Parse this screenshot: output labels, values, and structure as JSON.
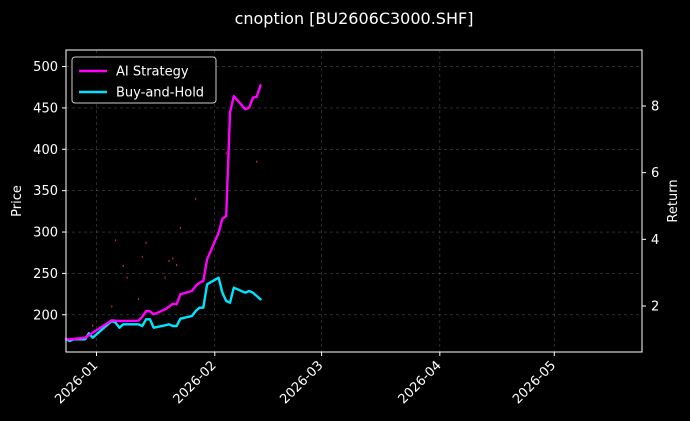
{
  "chart_data": {
    "type": "line",
    "title": "cnoption [BU2606C3000.SHF]",
    "ylabel": "Price",
    "y2label": "Return",
    "xlim": [
      "2025-12-24",
      "2026-05-24"
    ],
    "ylim": [
      155,
      520
    ],
    "y2lim": [
      0.62,
      9.68
    ],
    "x_ticks": [
      "2026-01",
      "2026-02",
      "2026-03",
      "2026-04",
      "2026-05"
    ],
    "y_ticks": [
      200,
      250,
      300,
      350,
      400,
      450,
      500
    ],
    "y2_ticks": [
      2,
      4,
      6,
      8
    ],
    "grid": true,
    "legend_position": "top-left",
    "series": [
      {
        "name": "AI Strategy",
        "axis": "right",
        "color": "#ff00ff",
        "x": [
          "2025-12-24",
          "2025-12-25",
          "2025-12-26",
          "2025-12-29",
          "2025-12-30",
          "2025-12-31",
          "2026-01-02",
          "2026-01-05",
          "2026-01-06",
          "2026-01-07",
          "2026-01-08",
          "2026-01-09",
          "2026-01-12",
          "2026-01-13",
          "2026-01-14",
          "2026-01-15",
          "2026-01-16",
          "2026-01-19",
          "2026-01-20",
          "2026-01-21",
          "2026-01-22",
          "2026-01-23",
          "2026-01-26",
          "2026-01-27",
          "2026-01-28",
          "2026-01-29",
          "2026-01-30",
          "2026-02-02",
          "2026-02-03",
          "2026-02-04",
          "2026-02-05",
          "2026-02-06",
          "2026-02-09",
          "2026-02-10",
          "2026-02-11",
          "2026-02-12",
          "2026-02-13"
        ],
        "values": [
          1.0,
          1.0,
          1.01,
          1.05,
          1.12,
          1.2,
          1.35,
          1.57,
          1.56,
          1.55,
          1.55,
          1.55,
          1.56,
          1.68,
          1.85,
          1.84,
          1.75,
          1.9,
          1.98,
          2.07,
          2.05,
          2.35,
          2.45,
          2.6,
          2.7,
          2.75,
          3.4,
          4.2,
          4.62,
          4.7,
          7.8,
          8.3,
          7.9,
          7.95,
          8.25,
          8.28,
          8.62
        ]
      },
      {
        "name": "Buy-and-Hold",
        "axis": "right",
        "color": "#00e5ff",
        "x": [
          "2025-12-24",
          "2025-12-25",
          "2025-12-26",
          "2025-12-29",
          "2025-12-30",
          "2025-12-31",
          "2026-01-02",
          "2026-01-05",
          "2026-01-06",
          "2026-01-07",
          "2026-01-08",
          "2026-01-09",
          "2026-01-12",
          "2026-01-13",
          "2026-01-14",
          "2026-01-15",
          "2026-01-16",
          "2026-01-19",
          "2026-01-20",
          "2026-01-21",
          "2026-01-22",
          "2026-01-23",
          "2026-01-26",
          "2026-01-27",
          "2026-01-28",
          "2026-01-29",
          "2026-01-30",
          "2026-02-02",
          "2026-02-03",
          "2026-02-04",
          "2026-02-05",
          "2026-02-06",
          "2026-02-09",
          "2026-02-10",
          "2026-02-11",
          "2026-02-12",
          "2026-02-13"
        ],
        "values": [
          1.0,
          0.95,
          1.0,
          1.0,
          1.18,
          1.05,
          1.25,
          1.55,
          1.5,
          1.35,
          1.45,
          1.45,
          1.45,
          1.4,
          1.6,
          1.6,
          1.35,
          1.42,
          1.45,
          1.4,
          1.4,
          1.62,
          1.7,
          1.85,
          1.95,
          1.95,
          2.65,
          2.85,
          2.4,
          2.15,
          2.1,
          2.55,
          2.4,
          2.45,
          2.4,
          2.3,
          2.2
        ]
      }
    ],
    "price_points": [
      {
        "x": "2025-12-31",
        "y": 187
      },
      {
        "x": "2026-01-05",
        "y": 210
      },
      {
        "x": "2026-01-06",
        "y": 290
      },
      {
        "x": "2026-01-08",
        "y": 259
      },
      {
        "x": "2026-01-09",
        "y": 245
      },
      {
        "x": "2026-01-12",
        "y": 219
      },
      {
        "x": "2026-01-13",
        "y": 270
      },
      {
        "x": "2026-01-14",
        "y": 287
      },
      {
        "x": "2026-01-19",
        "y": 245
      },
      {
        "x": "2026-01-20",
        "y": 265
      },
      {
        "x": "2026-01-21",
        "y": 268
      },
      {
        "x": "2026-01-22",
        "y": 260
      },
      {
        "x": "2026-01-23",
        "y": 305
      },
      {
        "x": "2026-01-27",
        "y": 340
      },
      {
        "x": "2026-02-04",
        "y": 395
      },
      {
        "x": "2026-02-12",
        "y": 385
      }
    ]
  }
}
